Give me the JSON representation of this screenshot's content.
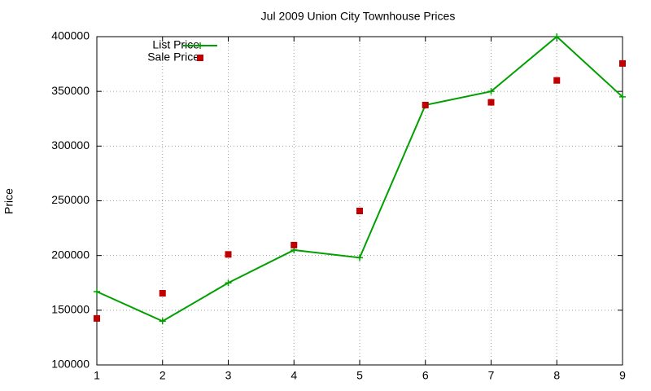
{
  "chart_data": {
    "type": "line",
    "title": "Jul 2009 Union City Townhouse Prices",
    "y_label": "Price",
    "x": [
      1,
      2,
      3,
      4,
      5,
      6,
      7,
      8,
      9
    ],
    "xlim": [
      1,
      9
    ],
    "xticks": [
      1,
      2,
      3,
      4,
      5,
      6,
      7,
      8,
      9
    ],
    "ylim": [
      100000,
      400000
    ],
    "yticks": [
      100000,
      150000,
      200000,
      250000,
      300000,
      350000,
      400000
    ],
    "grid": true,
    "legend": "top-left",
    "series": [
      {
        "name": "List Price",
        "color": "#00a000",
        "style": "linespoints",
        "values": [
          167000,
          140000,
          175000,
          205000,
          198000,
          337500,
          350000,
          400000,
          345000
        ]
      },
      {
        "name": "Sale Price",
        "color": "#c00000",
        "style": "points",
        "values": [
          142500,
          165500,
          201000,
          209500,
          240700,
          337500,
          340000,
          360000,
          375500
        ]
      }
    ]
  }
}
